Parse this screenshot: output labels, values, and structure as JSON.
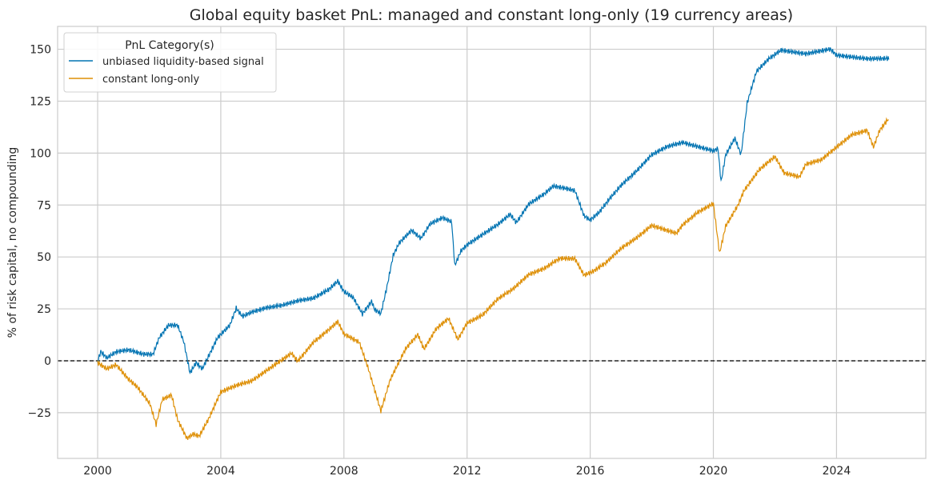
{
  "chart_data": {
    "type": "line",
    "title": "Global equity basket PnL: managed and constant long-only (19 currency areas)",
    "xlabel": "",
    "ylabel": "% of risk capital, no compounding",
    "xlim": [
      1998.7,
      2026.9
    ],
    "ylim": [
      -47,
      161
    ],
    "xticks": [
      2000,
      2004,
      2008,
      2012,
      2016,
      2020,
      2024
    ],
    "yticks": [
      -25,
      0,
      25,
      50,
      75,
      100,
      125,
      150
    ],
    "grid": true,
    "reference_line": {
      "y": 0,
      "style": "dashed",
      "color": "#000000"
    },
    "legend": {
      "title": "PnL Category(s)",
      "placement": "top-left"
    },
    "series": [
      {
        "name": "unbiased liquidity-based signal",
        "color": "#0173b2",
        "x": [
          2000.0,
          2000.1,
          2000.3,
          2000.6,
          2001.0,
          2001.5,
          2001.8,
          2002.0,
          2002.3,
          2002.6,
          2002.8,
          2003.0,
          2003.2,
          2003.4,
          2003.6,
          2003.9,
          2004.3,
          2004.5,
          2004.7,
          2005.0,
          2005.5,
          2006.0,
          2006.5,
          2007.0,
          2007.5,
          2007.8,
          2008.0,
          2008.3,
          2008.6,
          2008.9,
          2009.0,
          2009.2,
          2009.4,
          2009.6,
          2009.8,
          2010.2,
          2010.5,
          2010.8,
          2011.2,
          2011.5,
          2011.6,
          2011.8,
          2012.0,
          2012.5,
          2013.0,
          2013.4,
          2013.6,
          2014.0,
          2014.5,
          2014.8,
          2015.2,
          2015.5,
          2015.8,
          2016.0,
          2016.3,
          2016.6,
          2017.0,
          2017.5,
          2018.0,
          2018.5,
          2019.0,
          2019.5,
          2020.0,
          2020.15,
          2020.25,
          2020.4,
          2020.7,
          2020.9,
          2021.1,
          2021.4,
          2021.8,
          2022.2,
          2023.0,
          2023.8,
          2024.0,
          2024.5,
          2025.0,
          2025.7
        ],
        "y": [
          0,
          5,
          2,
          5,
          6,
          4,
          4,
          12,
          18,
          18,
          10,
          -5,
          0,
          -3,
          3,
          12,
          18,
          26,
          22,
          24,
          26,
          27,
          29,
          30,
          34,
          38,
          33,
          30,
          22,
          28,
          24,
          22,
          35,
          50,
          56,
          62,
          58,
          65,
          68,
          66,
          45,
          52,
          55,
          60,
          65,
          70,
          66,
          75,
          80,
          84,
          83,
          82,
          70,
          68,
          72,
          78,
          85,
          92,
          100,
          104,
          106,
          104,
          102,
          103,
          87,
          100,
          108,
          100,
          125,
          140,
          146,
          150,
          148,
          150,
          147,
          146,
          145,
          145
        ]
      },
      {
        "name": "constant long-only",
        "color": "#de8f05",
        "x": [
          2000.0,
          2000.3,
          2000.6,
          2001.0,
          2001.3,
          2001.7,
          2001.9,
          2002.1,
          2002.4,
          2002.6,
          2002.9,
          2003.1,
          2003.3,
          2003.6,
          2004.0,
          2004.5,
          2005.0,
          2005.5,
          2006.0,
          2006.3,
          2006.5,
          2007.0,
          2007.5,
          2007.8,
          2008.0,
          2008.5,
          2008.8,
          2009.0,
          2009.2,
          2009.5,
          2010.0,
          2010.4,
          2010.6,
          2011.0,
          2011.4,
          2011.7,
          2012.0,
          2012.5,
          2013.0,
          2013.5,
          2014.0,
          2014.5,
          2015.0,
          2015.5,
          2015.8,
          2016.1,
          2016.5,
          2017.0,
          2017.5,
          2018.0,
          2018.8,
          2019.0,
          2019.5,
          2020.0,
          2020.2,
          2020.4,
          2020.8,
          2021.0,
          2021.5,
          2022.0,
          2022.3,
          2022.8,
          2023.0,
          2023.5,
          2024.0,
          2024.5,
          2025.0,
          2025.2,
          2025.4,
          2025.7
        ],
        "y": [
          0,
          -3,
          -1,
          -8,
          -12,
          -20,
          -30,
          -18,
          -16,
          -28,
          -37,
          -35,
          -36,
          -28,
          -15,
          -12,
          -10,
          -5,
          0,
          3,
          -1,
          8,
          14,
          18,
          12,
          8,
          -5,
          -15,
          -25,
          -10,
          5,
          12,
          5,
          15,
          20,
          10,
          18,
          22,
          30,
          35,
          42,
          45,
          50,
          50,
          42,
          44,
          48,
          55,
          60,
          66,
          62,
          66,
          72,
          76,
          52,
          65,
          75,
          82,
          92,
          98,
          90,
          88,
          94,
          96,
          102,
          108,
          110,
          102,
          110,
          116
        ]
      }
    ]
  }
}
